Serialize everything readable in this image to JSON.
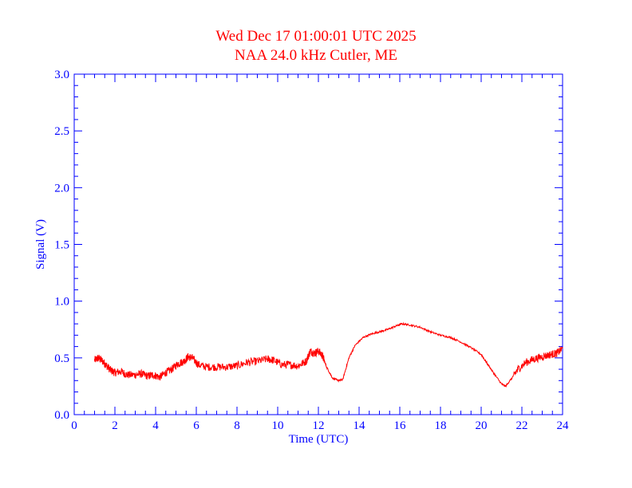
{
  "colors": {
    "title": "#ff0000",
    "axes": "#0000ff",
    "series": "#ff0000",
    "background": "#ffffff"
  },
  "chart_data": {
    "type": "line",
    "title": "Wed Dec 17 01:00:01 UTC 2025",
    "subtitle": "NAA 24.0 kHz Cutler, ME",
    "xlabel": "Time (UTC)",
    "ylabel": "Signal (V)",
    "xlim": [
      0,
      24
    ],
    "ylim": [
      0,
      3.0
    ],
    "xticks": [
      "0",
      "2",
      "4",
      "6",
      "8",
      "10",
      "12",
      "14",
      "16",
      "18",
      "20",
      "22",
      "24"
    ],
    "yticks": [
      "0.0",
      "0.5",
      "1.0",
      "1.5",
      "2.0",
      "2.5",
      "3.0"
    ],
    "grid": false,
    "series": [
      {
        "x": [
          1.0,
          1.2,
          1.4,
          1.6,
          1.8,
          2.0,
          2.3,
          2.6,
          3.0,
          3.3,
          3.6,
          3.9,
          4.2,
          4.5,
          4.8,
          5.1,
          5.4,
          5.6,
          5.8,
          6.1,
          6.5,
          7.0,
          7.5,
          8.0,
          8.5,
          9.0,
          9.5,
          9.8,
          10.2,
          10.6,
          11.0,
          11.4,
          11.6,
          11.8,
          12.0,
          12.2,
          12.4,
          12.7,
          13.0,
          13.2,
          13.5,
          13.8,
          14.2,
          14.6,
          15.0,
          15.4,
          15.8,
          16.1,
          16.5,
          17.0,
          17.5,
          18.0,
          18.5,
          19.0,
          19.5,
          20.0,
          20.3,
          20.6,
          21.0,
          21.2,
          21.5,
          21.8,
          22.2,
          22.6,
          23.0,
          23.4,
          23.7,
          24.0
        ],
        "values": [
          0.48,
          0.5,
          0.47,
          0.43,
          0.39,
          0.37,
          0.38,
          0.35,
          0.35,
          0.36,
          0.34,
          0.35,
          0.33,
          0.37,
          0.4,
          0.45,
          0.47,
          0.51,
          0.5,
          0.44,
          0.42,
          0.42,
          0.42,
          0.43,
          0.46,
          0.47,
          0.49,
          0.48,
          0.44,
          0.44,
          0.43,
          0.47,
          0.56,
          0.54,
          0.56,
          0.52,
          0.42,
          0.32,
          0.3,
          0.31,
          0.5,
          0.61,
          0.68,
          0.71,
          0.73,
          0.75,
          0.78,
          0.8,
          0.79,
          0.77,
          0.73,
          0.7,
          0.68,
          0.64,
          0.59,
          0.53,
          0.45,
          0.37,
          0.27,
          0.25,
          0.32,
          0.4,
          0.46,
          0.49,
          0.51,
          0.53,
          0.54,
          0.58
        ]
      }
    ]
  }
}
